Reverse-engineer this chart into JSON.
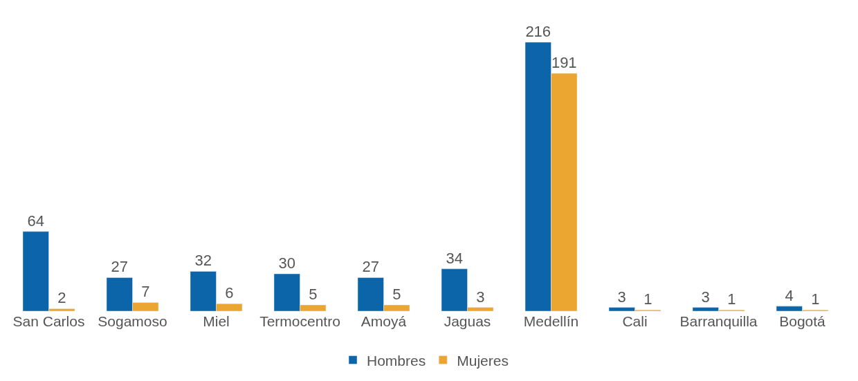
{
  "chart_data": {
    "type": "bar",
    "categories": [
      "San Carlos",
      "Sogamoso",
      "Miel",
      "Termocentro",
      "Amoyá",
      "Jaguas",
      "Medellín",
      "Cali",
      "Barranquilla",
      "Bogotá"
    ],
    "series": [
      {
        "name": "Hombres",
        "color": "#0b65a8",
        "values": [
          64,
          27,
          32,
          30,
          27,
          34,
          216,
          3,
          3,
          4
        ]
      },
      {
        "name": "Mujeres",
        "color": "#eaa630",
        "values": [
          2,
          7,
          6,
          5,
          5,
          3,
          191,
          1,
          1,
          1
        ]
      }
    ],
    "data_labels": true,
    "legend": "bottom"
  }
}
